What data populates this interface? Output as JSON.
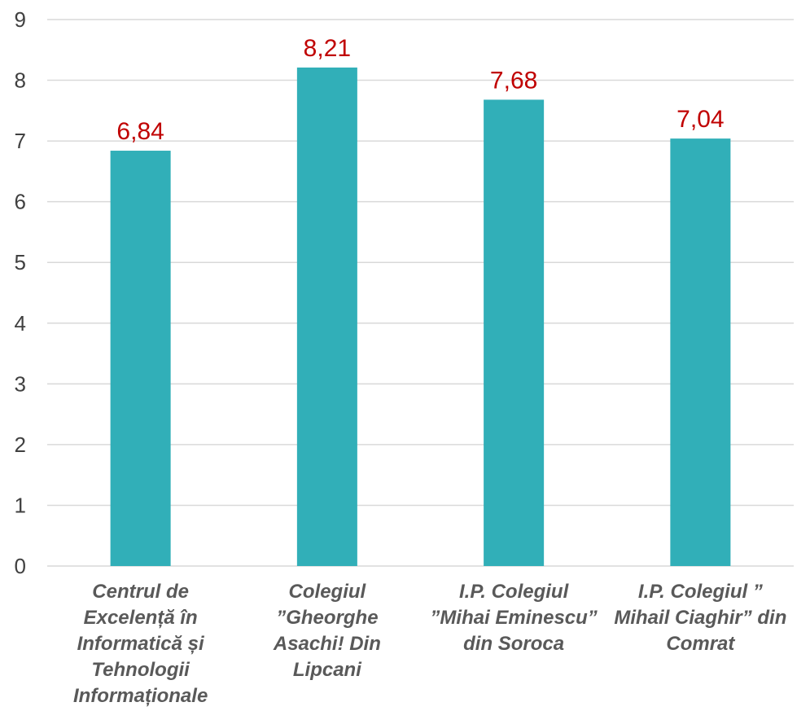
{
  "chart_data": {
    "type": "bar",
    "title": "",
    "xlabel": "",
    "ylabel": "",
    "categories": [
      "Centrul de Excelență în Informatică și Tehnologii Informaționale",
      "Colegiul ”Gheorghe Asachi! Din Lipcani",
      "I.P. Colegiul ”Mihai Eminescu” din Soroca",
      "I.P. Colegiul ” Mihail Ciaghir” din Comrat"
    ],
    "category_lines": [
      [
        "Centrul de",
        "Excelență în",
        "Informatică și",
        "Tehnologii",
        "Informaționale"
      ],
      [
        "Colegiul",
        "”Gheorghe",
        "Asachi! Din",
        "Lipcani"
      ],
      [
        "I.P. Colegiul",
        "”Mihai Eminescu”",
        "din Soroca"
      ],
      [
        "I.P. Colegiul ”",
        "Mihail Ciaghir” din",
        "Comrat"
      ]
    ],
    "values": [
      6.84,
      8.21,
      7.68,
      7.04
    ],
    "value_labels": [
      "6,84",
      "8,21",
      "7,68",
      "7,04"
    ],
    "ylim": [
      0,
      9
    ],
    "yticks": [
      0,
      1,
      2,
      3,
      4,
      5,
      6,
      7,
      8,
      9
    ],
    "grid": true,
    "legend": "none",
    "colors": {
      "bar": "#31AFB8",
      "data_label": "#C00000",
      "grid": "#D9D9D9",
      "tick_text": "#404040",
      "category_text": "#595959"
    }
  }
}
